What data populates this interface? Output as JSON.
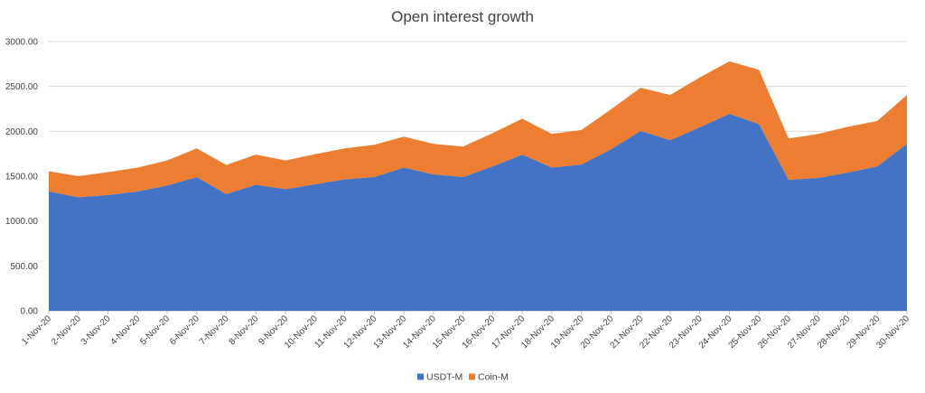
{
  "chart_data": {
    "type": "area",
    "stacked": true,
    "title": "Open interest growth",
    "xlabel": "",
    "ylabel": "",
    "ylim": [
      0,
      3000
    ],
    "ytick_values": [
      0,
      500,
      1000,
      1500,
      2000,
      2500,
      3000
    ],
    "ytick_labels": [
      "0.00",
      "500.00",
      "1000.00",
      "1500.00",
      "2000.00",
      "2500.00",
      "3000.00"
    ],
    "grid": true,
    "legend_position": "bottom-center",
    "categories": [
      "1-Nov-20",
      "2-Nov-20",
      "3-Nov-20",
      "4-Nov-20",
      "5-Nov-20",
      "6-Nov-20",
      "7-Nov-20",
      "8-Nov-20",
      "9-Nov-20",
      "10-Nov-20",
      "11-Nov-20",
      "12-Nov-20",
      "13-Nov-20",
      "14-Nov-20",
      "15-Nov-20",
      "16-Nov-20",
      "17-Nov-20",
      "18-Nov-20",
      "19-Nov-20",
      "20-Nov-20",
      "21-Nov-20",
      "22-Nov-20",
      "23-Nov-20",
      "24-Nov-20",
      "25-Nov-20",
      "26-Nov-20",
      "27-Nov-20",
      "28-Nov-20",
      "29-Nov-20",
      "30-Nov-20"
    ],
    "series": [
      {
        "name": "USDT-M",
        "color": "#4472c4",
        "values": [
          1330,
          1265,
          1290,
          1330,
          1395,
          1490,
          1300,
          1405,
          1355,
          1410,
          1465,
          1490,
          1595,
          1520,
          1490,
          1610,
          1740,
          1595,
          1630,
          1800,
          2005,
          1900,
          2045,
          2195,
          2080,
          1460,
          1480,
          1540,
          1610,
          1860
        ]
      },
      {
        "name": "Coin-M",
        "color": "#ed7d31",
        "values": [
          225,
          235,
          255,
          265,
          280,
          320,
          325,
          335,
          320,
          335,
          345,
          360,
          345,
          340,
          340,
          370,
          400,
          375,
          385,
          445,
          480,
          505,
          555,
          585,
          605,
          460,
          490,
          510,
          505,
          545
        ]
      }
    ]
  }
}
